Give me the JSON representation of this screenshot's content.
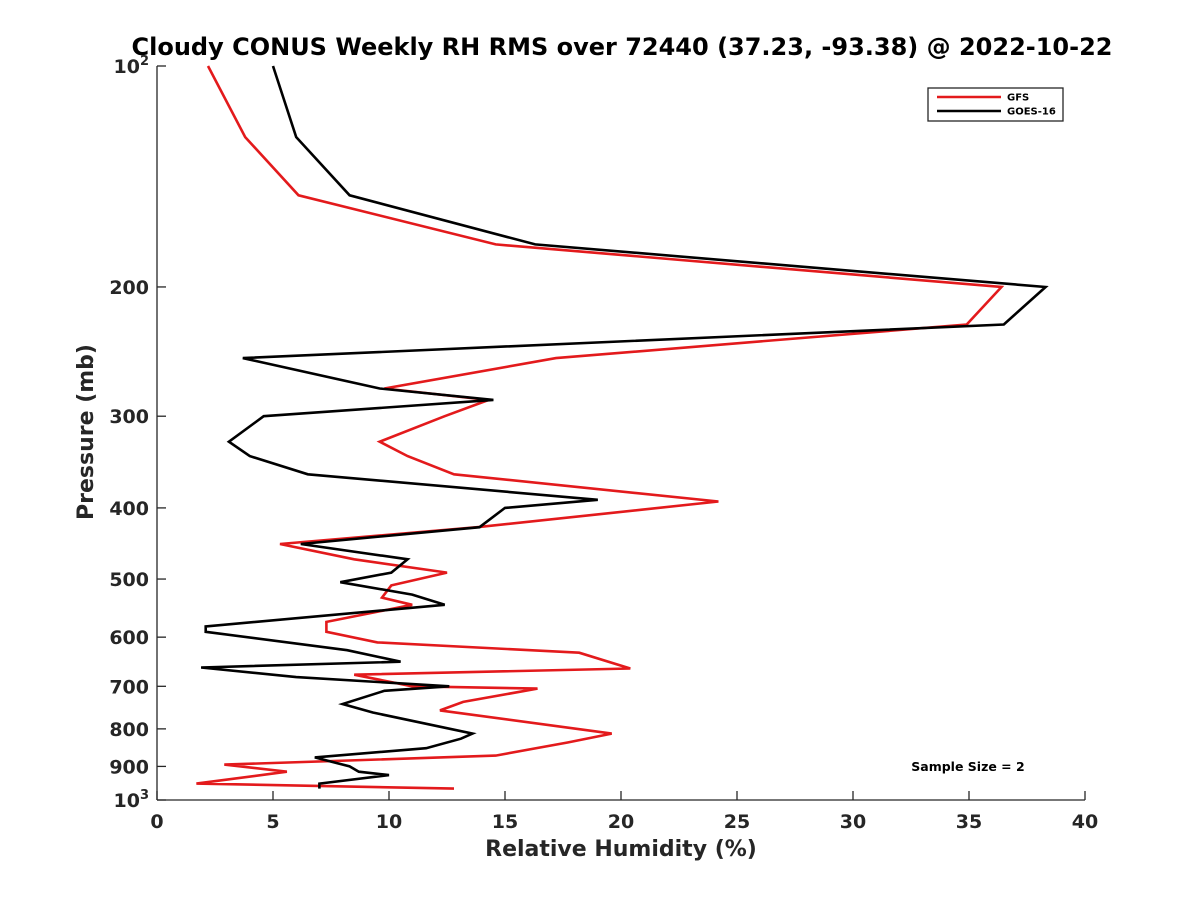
{
  "chart_data": {
    "type": "line",
    "title": "Cloudy CONUS Weekly RH RMS over 72440 (37.23, -93.38) @ 2022-10-22",
    "xlabel": "Relative Humidity (%)",
    "ylabel": "Pressure (mb)",
    "xlim": [
      0,
      40
    ],
    "ylim": [
      100,
      1000
    ],
    "yscale": "log",
    "y_reversed": true,
    "grid": false,
    "legend_position": "top-right",
    "x_ticks": [
      "0",
      "5",
      "10",
      "15",
      "20",
      "25",
      "30",
      "35",
      "40"
    ],
    "y_ticks": [
      {
        "value": 100,
        "base": "10",
        "exp": "2"
      },
      {
        "value": 200,
        "label": "200"
      },
      {
        "value": 300,
        "label": "300"
      },
      {
        "value": 400,
        "label": "400"
      },
      {
        "value": 500,
        "label": "500"
      },
      {
        "value": 600,
        "label": "600"
      },
      {
        "value": 700,
        "label": "700"
      },
      {
        "value": 800,
        "label": "800"
      },
      {
        "value": 900,
        "label": "900"
      },
      {
        "value": 1000,
        "base": "10",
        "exp": "3"
      }
    ],
    "series": [
      {
        "name": "GFS",
        "color": "#e31a1c",
        "points": [
          [
            2.2,
            100
          ],
          [
            3.8,
            125
          ],
          [
            6.1,
            150
          ],
          [
            14.6,
            175
          ],
          [
            36.4,
            200
          ],
          [
            34.9,
            225
          ],
          [
            17.2,
            250
          ],
          [
            9.8,
            275
          ],
          [
            14.3,
            285
          ],
          [
            12.4,
            300
          ],
          [
            9.6,
            325
          ],
          [
            10.8,
            340
          ],
          [
            12.8,
            360
          ],
          [
            24.2,
            392
          ],
          [
            13.8,
            425
          ],
          [
            5.3,
            448
          ],
          [
            8.5,
            470
          ],
          [
            12.5,
            490
          ],
          [
            10.1,
            510
          ],
          [
            9.7,
            530
          ],
          [
            11.0,
            542
          ],
          [
            7.3,
            572
          ],
          [
            7.3,
            590
          ],
          [
            9.5,
            610
          ],
          [
            18.2,
            630
          ],
          [
            20.4,
            662
          ],
          [
            8.5,
            675
          ],
          [
            11.0,
            700
          ],
          [
            16.4,
            705
          ],
          [
            13.2,
            735
          ],
          [
            12.2,
            755
          ],
          [
            19.6,
            812
          ],
          [
            17.7,
            835
          ],
          [
            14.6,
            870
          ],
          [
            2.9,
            895
          ],
          [
            5.6,
            915
          ],
          [
            1.7,
            950
          ],
          [
            12.8,
            965
          ]
        ]
      },
      {
        "name": "GOES-16",
        "color": "#000000",
        "points": [
          [
            5.0,
            100
          ],
          [
            6.0,
            125
          ],
          [
            8.3,
            150
          ],
          [
            16.3,
            175
          ],
          [
            38.3,
            200
          ],
          [
            36.5,
            225
          ],
          [
            3.7,
            250
          ],
          [
            9.6,
            275
          ],
          [
            14.5,
            285
          ],
          [
            4.6,
            300
          ],
          [
            3.1,
            325
          ],
          [
            4.0,
            340
          ],
          [
            6.5,
            360
          ],
          [
            19.0,
            390
          ],
          [
            15.0,
            400
          ],
          [
            13.9,
            425
          ],
          [
            6.2,
            448
          ],
          [
            10.8,
            470
          ],
          [
            10.1,
            490
          ],
          [
            7.9,
            505
          ],
          [
            11.0,
            525
          ],
          [
            12.4,
            542
          ],
          [
            2.1,
            580
          ],
          [
            2.1,
            590
          ],
          [
            8.2,
            625
          ],
          [
            10.5,
            648
          ],
          [
            1.9,
            660
          ],
          [
            6.0,
            680
          ],
          [
            12.6,
            700
          ],
          [
            9.8,
            710
          ],
          [
            8.0,
            740
          ],
          [
            9.3,
            760
          ],
          [
            13.6,
            812
          ],
          [
            13.1,
            825
          ],
          [
            11.6,
            850
          ],
          [
            6.8,
            875
          ],
          [
            8.3,
            900
          ],
          [
            8.7,
            915
          ],
          [
            10.0,
            925
          ],
          [
            7.0,
            950
          ],
          [
            7.0,
            965
          ]
        ]
      }
    ],
    "annotation": "Sample Size = 2"
  }
}
